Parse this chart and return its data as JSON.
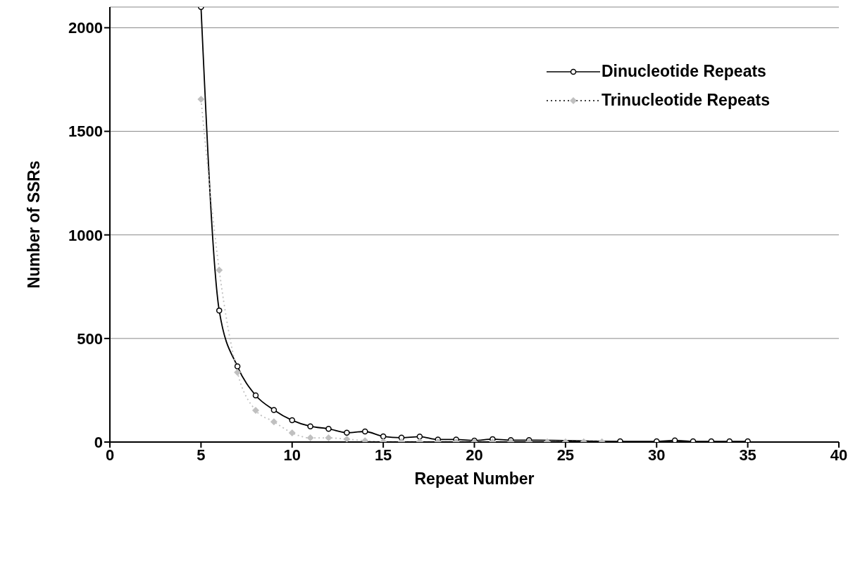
{
  "chart_data": {
    "type": "line",
    "xlabel": "Repeat Number",
    "ylabel": "Number of SSRs",
    "xlim": [
      0,
      40
    ],
    "xticks": [
      0,
      5,
      10,
      15,
      20,
      25,
      30,
      35,
      40
    ],
    "ylim": [
      0,
      2100
    ],
    "yticks": [
      0,
      500,
      1000,
      1500,
      2000
    ],
    "grid": "y",
    "legend": "top right",
    "series": [
      {
        "name": "Dinucleotide Repeats",
        "color": "#000000",
        "marker": "circle",
        "line_style": "solid",
        "x": [
          5,
          6,
          7,
          8,
          9,
          10,
          11,
          12,
          13,
          14,
          15,
          16,
          17,
          18,
          19,
          20,
          21,
          22,
          23,
          24,
          25,
          26,
          27,
          28,
          30,
          31,
          32,
          33,
          34,
          35
        ],
        "values": [
          2100,
          635,
          365,
          225,
          155,
          105,
          76,
          64,
          45,
          51,
          27,
          21,
          26,
          12,
          12,
          7,
          14,
          9,
          9,
          null,
          null,
          null,
          null,
          3,
          3,
          8,
          3,
          3,
          3,
          3
        ]
      },
      {
        "name": "Trinucleotide Repeats",
        "color": "#c0c0c0",
        "marker": "diamond",
        "line_style": "dotted",
        "x": [
          5,
          6,
          7,
          8,
          9,
          10,
          11,
          12,
          13,
          14,
          15,
          16,
          17,
          18,
          19,
          20,
          21,
          22,
          23,
          24,
          25,
          26,
          27
        ],
        "values": [
          1655,
          830,
          336,
          153,
          98,
          44,
          20,
          20,
          14,
          6,
          2,
          2,
          2,
          1,
          1,
          1,
          1,
          1,
          1,
          1,
          1,
          1,
          1
        ]
      }
    ]
  }
}
